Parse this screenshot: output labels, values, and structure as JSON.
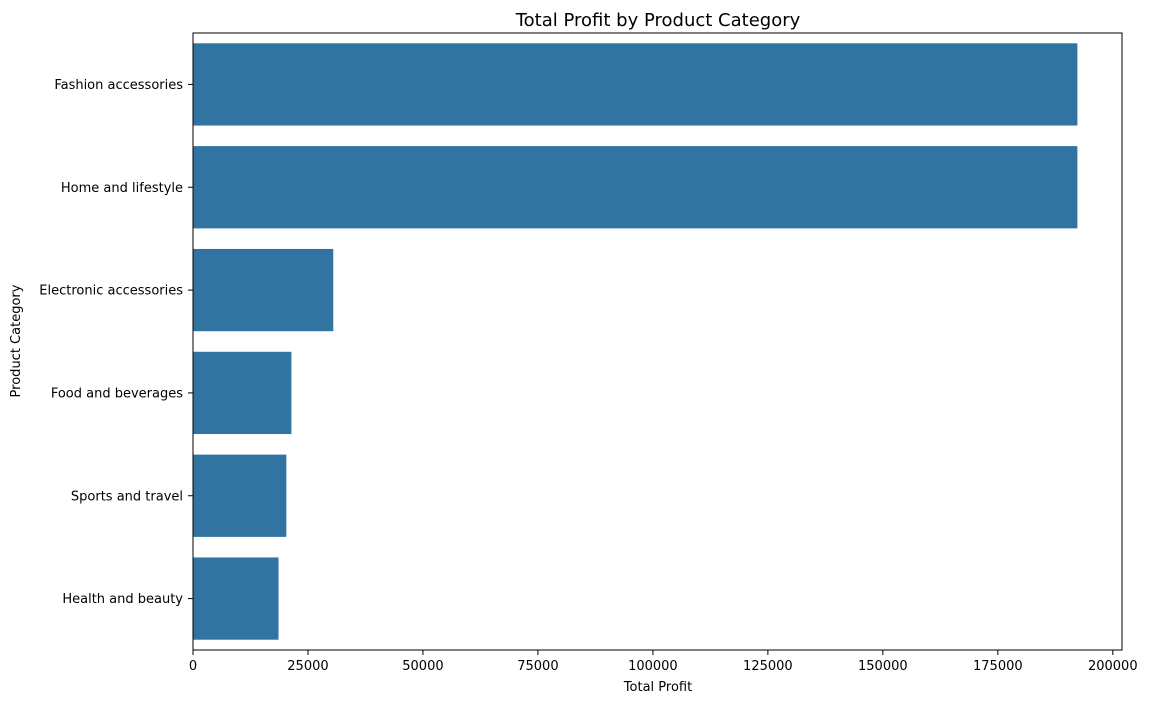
{
  "chart_data": {
    "type": "bar",
    "orientation": "horizontal",
    "title": "Total Profit by Product Category",
    "xlabel": "Total Profit",
    "ylabel": "Product Category",
    "categories": [
      "Fashion accessories",
      "Home and lifestyle",
      "Electronic accessories",
      "Food and beverages",
      "Sports and travel",
      "Health and beauty"
    ],
    "values": [
      192300,
      192300,
      30500,
      21400,
      20300,
      18600
    ],
    "xlim": [
      0,
      202000
    ],
    "xticks": [
      0,
      25000,
      50000,
      75000,
      100000,
      125000,
      150000,
      175000,
      200000
    ],
    "grid": false,
    "bar_color": "#3274a1"
  }
}
